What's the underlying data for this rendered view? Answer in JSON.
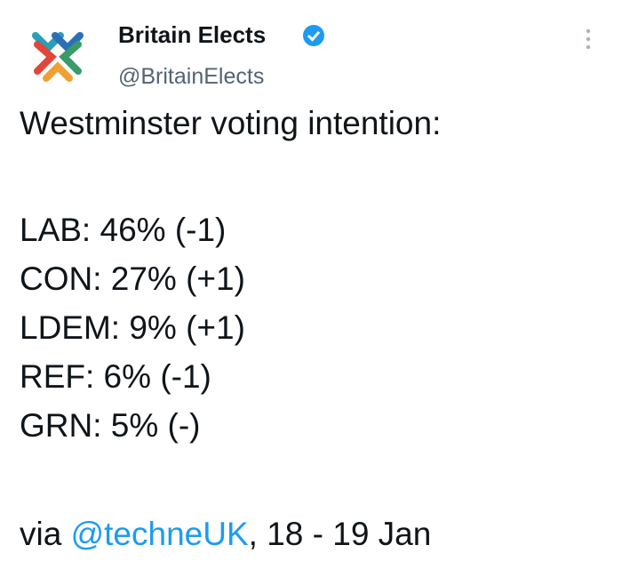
{
  "tweet": {
    "author": {
      "name": "Britain Elects",
      "handle": "@BritainElects"
    },
    "heading": "Westminster voting intention:",
    "lines": [
      "LAB: 46% (-1)",
      "CON: 27% (+1)",
      "LDEM: 9% (+1)",
      "REF: 6% (-1)",
      "GRN: 5% (-)"
    ],
    "source": {
      "prefix": "via ",
      "link": "@techneUK",
      "suffix": ", 18 - 19 Jan"
    }
  }
}
